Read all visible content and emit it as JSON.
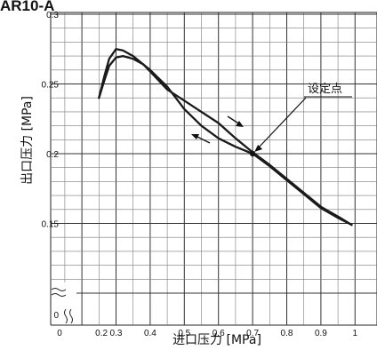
{
  "header": {
    "text": "AR10-A"
  },
  "chart_data": {
    "type": "line",
    "title": "",
    "xlabel": "进口压力 [MPa]",
    "ylabel": "出口压力 [MPa]",
    "x_ticks": [
      "0",
      "0.2",
      "0.3",
      "0.4",
      "0.5",
      "0.6",
      "0.7",
      "0.8",
      "0.9",
      "1"
    ],
    "y_ticks": [
      "0",
      "0.15",
      "0.2",
      "0.25",
      "0.3"
    ],
    "xlim": [
      0.15,
      1.05
    ],
    "ylim": [
      0.1,
      0.3
    ],
    "axis_break": "wavy break near origin (0 to 0.15 compressed)",
    "grid": true,
    "series": [
      {
        "x": [
          0.25,
          0.265,
          0.28,
          0.3,
          0.32,
          0.35,
          0.38,
          0.4,
          0.45,
          0.5,
          0.55,
          0.6,
          0.65,
          0.7,
          0.75,
          0.8,
          0.85,
          0.9,
          0.95,
          0.99
        ],
        "y": [
          0.24,
          0.255,
          0.268,
          0.275,
          0.274,
          0.27,
          0.264,
          0.259,
          0.246,
          0.238,
          0.23,
          0.222,
          0.211,
          0.201,
          0.192,
          0.182,
          0.172,
          0.162,
          0.155,
          0.149
        ]
      },
      {
        "x": [
          0.25,
          0.265,
          0.28,
          0.3,
          0.32,
          0.35,
          0.38,
          0.4,
          0.45,
          0.5,
          0.55,
          0.6,
          0.65,
          0.7,
          0.75,
          0.8,
          0.85,
          0.9,
          0.95,
          0.99
        ],
        "y": [
          0.24,
          0.252,
          0.263,
          0.269,
          0.27,
          0.268,
          0.264,
          0.26,
          0.248,
          0.232,
          0.22,
          0.211,
          0.205,
          0.2,
          0.191,
          0.181,
          0.171,
          0.161,
          0.154,
          0.149
        ]
      }
    ],
    "annotations": [
      {
        "text": "设定点",
        "x": 0.7,
        "y": 0.2
      }
    ],
    "set_point": {
      "x": 0.7,
      "y": 0.2
    }
  }
}
